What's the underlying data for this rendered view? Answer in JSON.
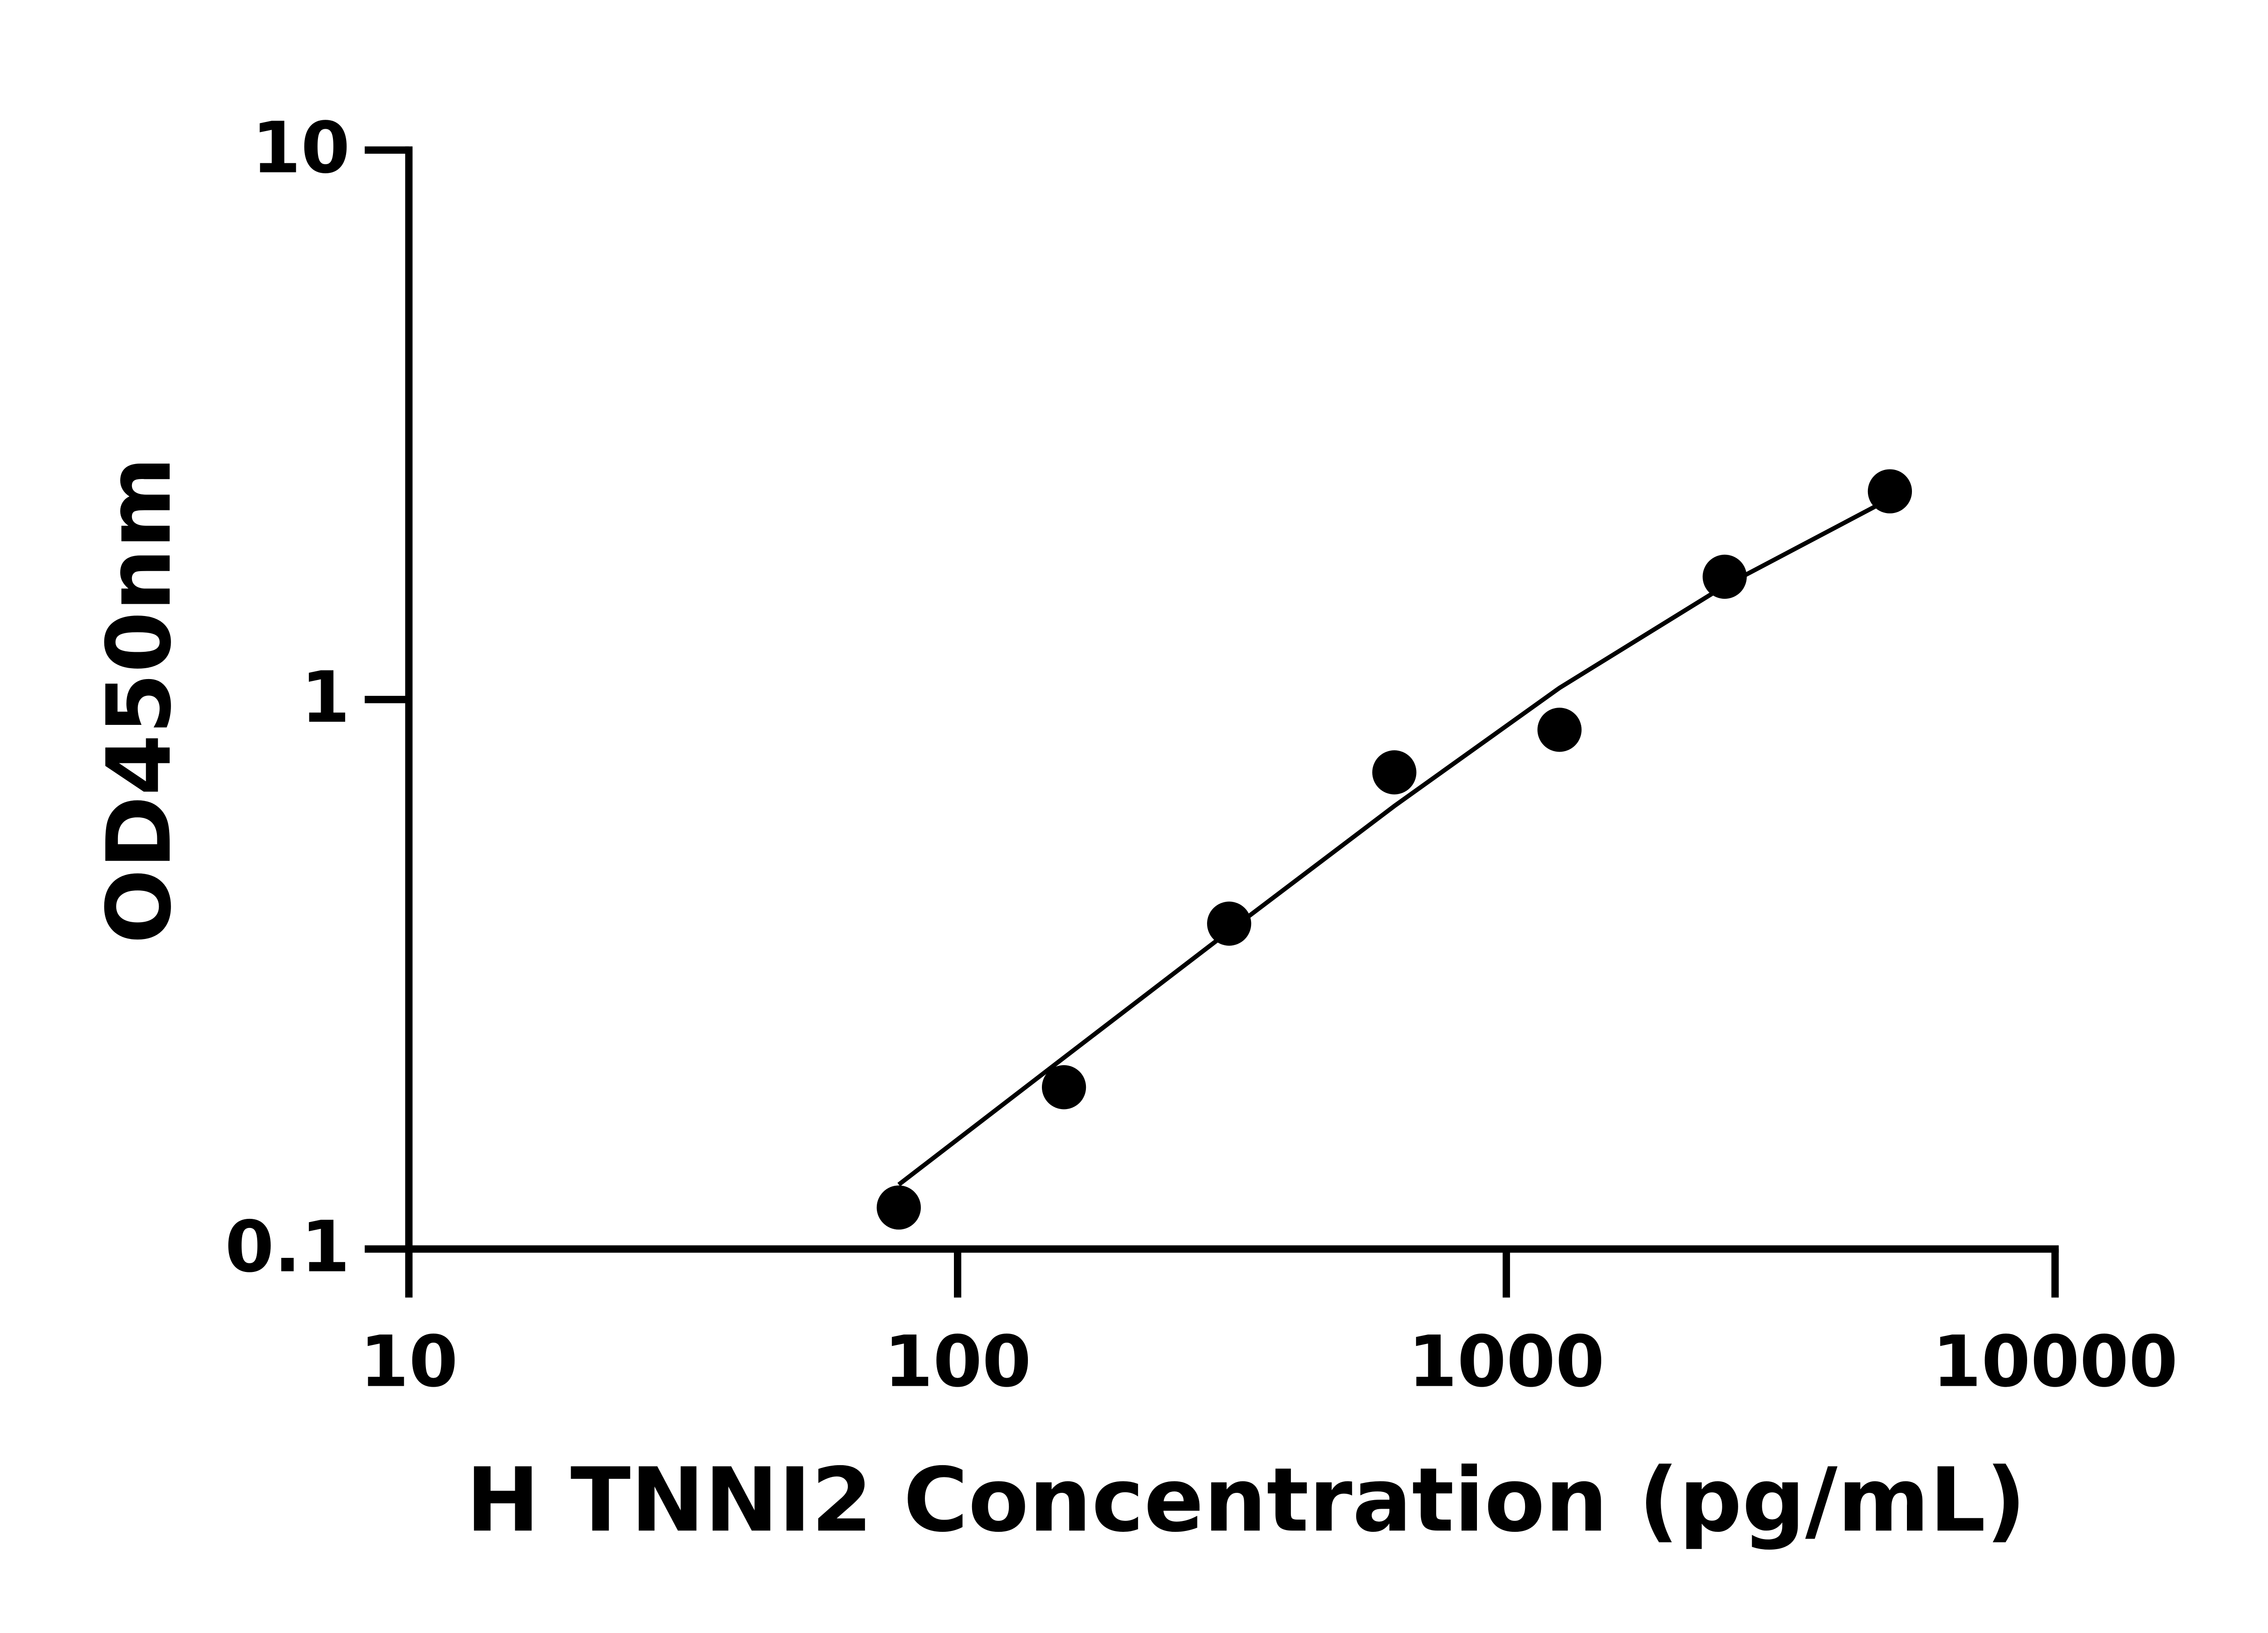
{
  "chart_data": {
    "type": "scatter",
    "x_label": "H TNNI2 Concentration (pg/mL)",
    "y_label": "OD450nm",
    "x": [
      78.125,
      156.25,
      312.5,
      625,
      1250,
      2500,
      5000
    ],
    "series": [
      {
        "color": "#000000",
        "values": [
          0.119,
          0.197,
          0.391,
          0.737,
          0.881,
          1.673,
          2.393
        ]
      }
    ],
    "fit": {
      "color": "#000000",
      "x": [
        78.125,
        156.25,
        312.5,
        625,
        1250,
        2500,
        5000
      ],
      "values": [
        0.131,
        0.223,
        0.379,
        0.64,
        1.05,
        1.61,
        2.32
      ]
    },
    "xlim": [
      10,
      10000
    ],
    "ylim": [
      0.1,
      10
    ],
    "xticks": [
      10,
      100,
      1000,
      10000
    ],
    "yticks": [
      0.1,
      1,
      10
    ],
    "xscale": "log",
    "yscale": "log"
  }
}
